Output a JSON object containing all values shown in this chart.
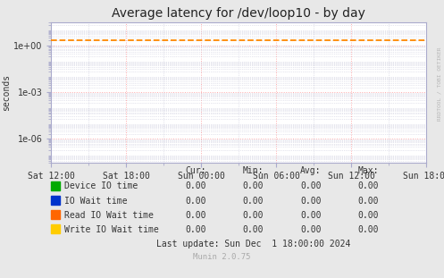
{
  "title": "Average latency for /dev/loop10 - by day",
  "ylabel": "seconds",
  "background_color": "#e8e8e8",
  "plot_bg_color": "#ffffff",
  "grid_color_major": "#ffaaaa",
  "grid_color_minor": "#ccccdd",
  "dashed_line_value": 2.0,
  "dashed_line_color": "#ff8800",
  "ylim_min": 3e-08,
  "ylim_max": 30.0,
  "yticks": [
    1e-06,
    0.001,
    1.0
  ],
  "ytick_labels": [
    "1e-06",
    "1e-03",
    "1e+00"
  ],
  "xtick_labels": [
    "Sat 12:00",
    "Sat 18:00",
    "Sun 00:00",
    "Sun 06:00",
    "Sun 12:00",
    "Sun 18:00"
  ],
  "legend_items": [
    {
      "label": "Device IO time",
      "color": "#00aa00"
    },
    {
      "label": "IO Wait time",
      "color": "#0033cc"
    },
    {
      "label": "Read IO Wait time",
      "color": "#ff6600"
    },
    {
      "label": "Write IO Wait time",
      "color": "#ffcc00"
    }
  ],
  "table_headers": [
    "Cur:",
    "Min:",
    "Avg:",
    "Max:"
  ],
  "table_rows": [
    [
      "0.00",
      "0.00",
      "0.00",
      "0.00"
    ],
    [
      "0.00",
      "0.00",
      "0.00",
      "0.00"
    ],
    [
      "0.00",
      "0.00",
      "0.00",
      "0.00"
    ],
    [
      "0.00",
      "0.00",
      "0.00",
      "0.00"
    ]
  ],
  "last_update": "Last update: Sun Dec  1 18:00:00 2024",
  "munin_version": "Munin 2.0.75",
  "watermark": "RRDTOOL / TOBI OETIKER",
  "spine_color": "#aaaacc",
  "title_fontsize": 10,
  "axis_fontsize": 7,
  "legend_fontsize": 7,
  "table_fontsize": 7
}
